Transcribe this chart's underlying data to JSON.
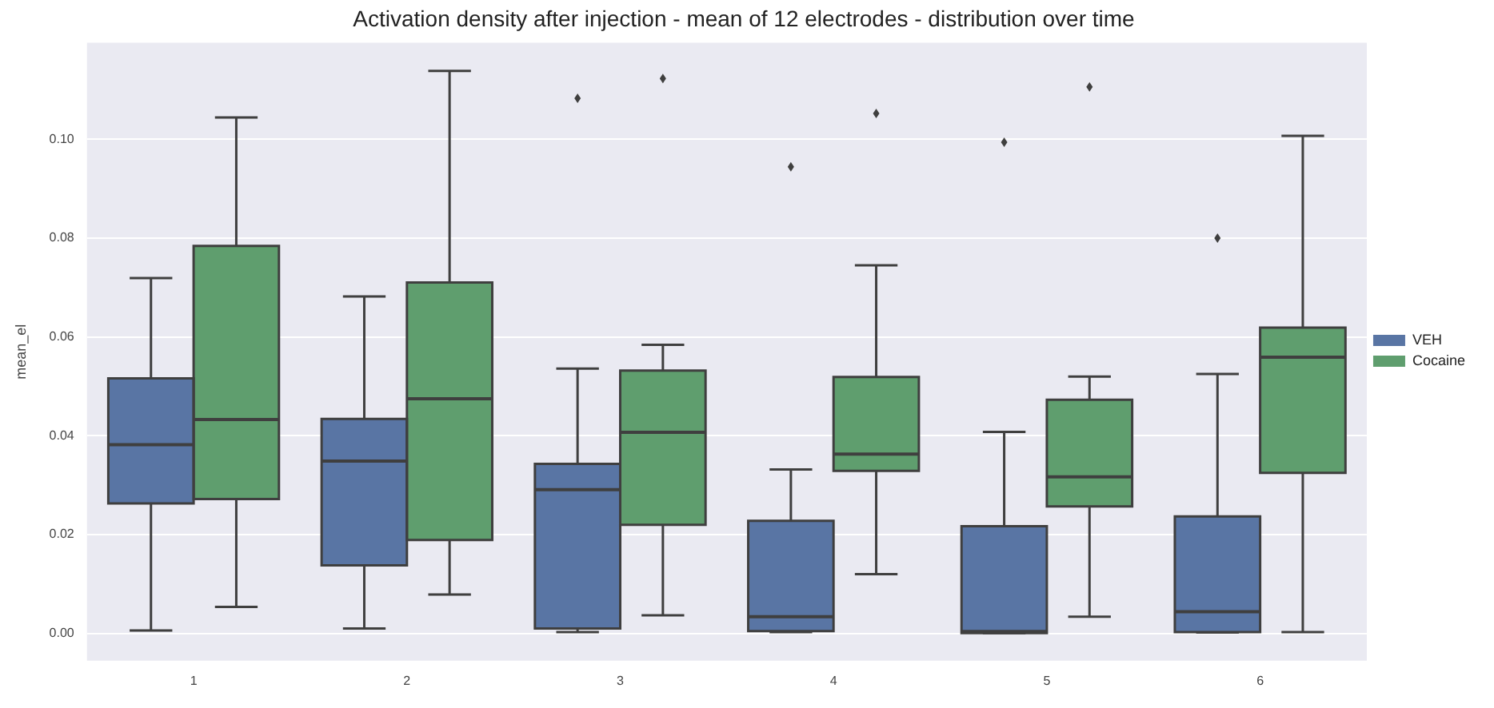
{
  "chart_data": {
    "type": "box",
    "title": "Activation density after injection - mean of 12 electrodes - distribution over time",
    "ylabel": "mean_el",
    "categories": [
      "1",
      "2",
      "3",
      "4",
      "5",
      "6"
    ],
    "series": [
      {
        "name": "VEH",
        "color": "#5975a4",
        "boxes": [
          {
            "low": 0.0006,
            "q1": 0.0263,
            "median": 0.0382,
            "q3": 0.0516,
            "high": 0.0719
          },
          {
            "low": 0.001,
            "q1": 0.0138,
            "median": 0.0349,
            "q3": 0.0434,
            "high": 0.0682
          },
          {
            "low": 0.0003,
            "q1": 0.001,
            "median": 0.0291,
            "q3": 0.0343,
            "high": 0.0536,
            "outliers": [
              0.1083
            ]
          },
          {
            "low": 0.0003,
            "q1": 0.0005,
            "median": 0.0034,
            "q3": 0.0228,
            "high": 0.0332,
            "outliers": [
              0.0944
            ]
          },
          {
            "low": 0.0001,
            "q1": 0.0001,
            "median": 0.0004,
            "q3": 0.0217,
            "high": 0.0408,
            "outliers": [
              0.0994
            ]
          },
          {
            "low": 0.0002,
            "q1": 0.0003,
            "median": 0.0044,
            "q3": 0.0237,
            "high": 0.0525,
            "outliers": [
              0.08
            ]
          }
        ]
      },
      {
        "name": "Cocaine",
        "color": "#5f9e6e",
        "boxes": [
          {
            "low": 0.0054,
            "q1": 0.0272,
            "median": 0.0433,
            "q3": 0.0784,
            "high": 0.1044
          },
          {
            "low": 0.0079,
            "q1": 0.0189,
            "median": 0.0475,
            "q3": 0.071,
            "high": 0.1138
          },
          {
            "low": 0.0037,
            "q1": 0.022,
            "median": 0.0407,
            "q3": 0.0532,
            "high": 0.0584,
            "outliers": [
              0.1123
            ]
          },
          {
            "low": 0.012,
            "q1": 0.0329,
            "median": 0.0363,
            "q3": 0.0519,
            "high": 0.0745,
            "outliers": [
              0.1052
            ]
          },
          {
            "low": 0.0034,
            "q1": 0.0257,
            "median": 0.0317,
            "q3": 0.0473,
            "high": 0.052,
            "outliers": [
              0.1106
            ]
          },
          {
            "low": 0.0003,
            "q1": 0.0325,
            "median": 0.0559,
            "q3": 0.0619,
            "high": 0.1007
          }
        ]
      }
    ],
    "ylim": [
      -0.0055,
      0.1195
    ],
    "yticks": [
      {
        "value": 0,
        "label": "0.00"
      },
      {
        "value": 0.02,
        "label": "0.02"
      },
      {
        "value": 0.04,
        "label": "0.04"
      },
      {
        "value": 0.06,
        "label": "0.06"
      },
      {
        "value": 0.08,
        "label": "0.08"
      },
      {
        "value": 0.1,
        "label": "0.10"
      }
    ],
    "grid": "y",
    "legend": "right"
  }
}
